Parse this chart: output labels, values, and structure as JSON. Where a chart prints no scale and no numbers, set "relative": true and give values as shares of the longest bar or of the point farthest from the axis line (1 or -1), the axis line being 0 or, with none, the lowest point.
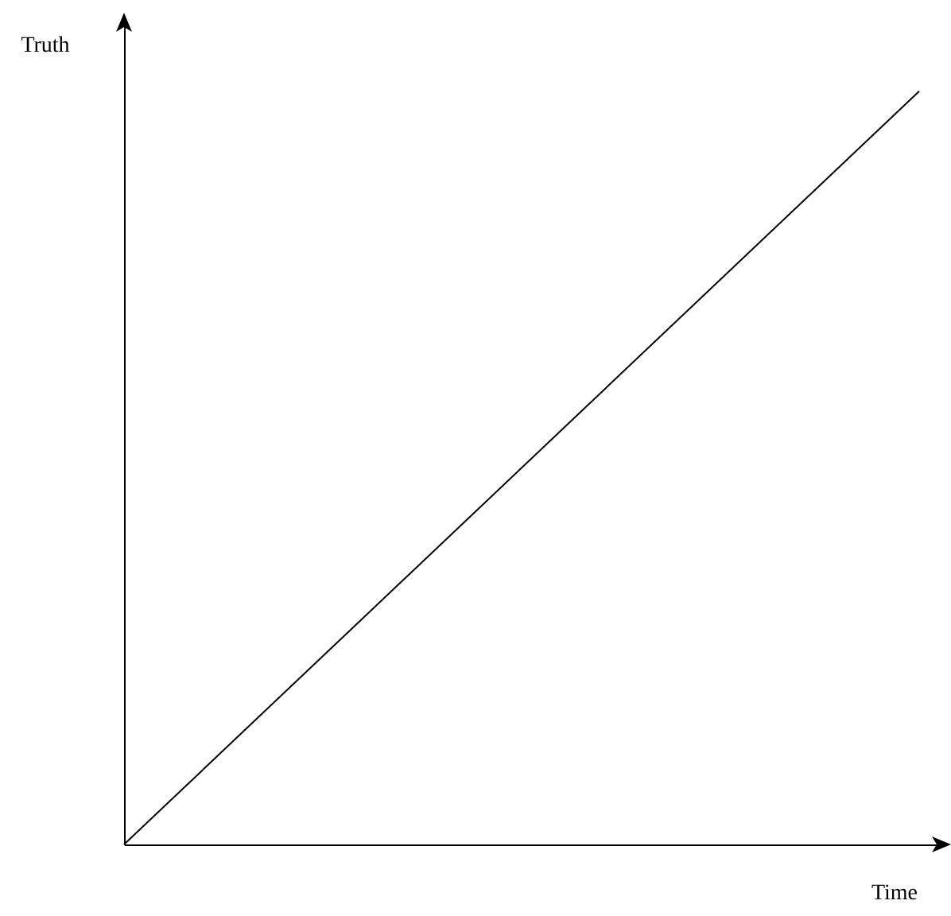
{
  "chart_data": {
    "type": "line",
    "relative": true,
    "xlabel": "Time",
    "ylabel": "Truth",
    "categories": [
      null,
      null
    ],
    "series": [
      {
        "color": "#000000",
        "values": [
          0,
          1
        ]
      }
    ],
    "grid": false,
    "marker": "none",
    "line_style": "solid"
  }
}
